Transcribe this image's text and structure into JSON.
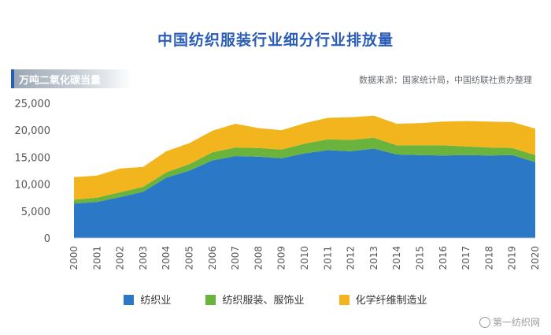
{
  "title": "中国纺织服装行业细分行业排放量",
  "unit_label": "万吨二氧化碳当量",
  "source": "数据来源：国家统计局，中国纺联社责办整理",
  "watermark": "第一纺织网",
  "colors": {
    "title": "#2a5db8",
    "textile": "#2b78c6",
    "apparel": "#6ab43e",
    "fiber": "#f2b51e"
  },
  "chart_data": {
    "type": "area",
    "stacked": true,
    "title": "中国纺织服装行业细分行业排放量",
    "ylabel": "万吨二氧化碳当量",
    "ylim": [
      0,
      25000
    ],
    "yticks": [
      0,
      5000,
      10000,
      15000,
      20000,
      25000
    ],
    "ytick_labels": [
      "0",
      "5,000",
      "10,000",
      "15,000",
      "20,000",
      "25,000"
    ],
    "grid": false,
    "legend_position": "bottom",
    "x": [
      "2000",
      "2001",
      "2002",
      "2003",
      "2004",
      "2005",
      "2006",
      "2007",
      "2008",
      "2009",
      "2010",
      "2011",
      "2012",
      "2013",
      "2014",
      "2015",
      "2016",
      "2017",
      "2018",
      "2019",
      "2020"
    ],
    "series": [
      {
        "name": "纺织业",
        "color": "#2b78c6",
        "values": [
          6400,
          6700,
          7600,
          8600,
          11200,
          12500,
          14400,
          15200,
          15100,
          14800,
          15700,
          16300,
          16100,
          16600,
          15500,
          15400,
          15300,
          15400,
          15300,
          15400,
          14100
        ]
      },
      {
        "name": "纺织服装、服饰业",
        "color": "#6ab43e",
        "values": [
          700,
          800,
          900,
          900,
          1000,
          1200,
          1500,
          1600,
          1600,
          1600,
          1800,
          2000,
          2100,
          2000,
          1700,
          1800,
          1900,
          1600,
          1500,
          1300,
          1300
        ]
      },
      {
        "name": "化学纤维制造业",
        "color": "#f2b51e",
        "values": [
          4200,
          4100,
          4400,
          3700,
          3900,
          3900,
          4000,
          4400,
          3700,
          3600,
          3800,
          4000,
          4200,
          4100,
          4000,
          4100,
          4400,
          4700,
          4800,
          4800,
          4900
        ]
      }
    ]
  }
}
